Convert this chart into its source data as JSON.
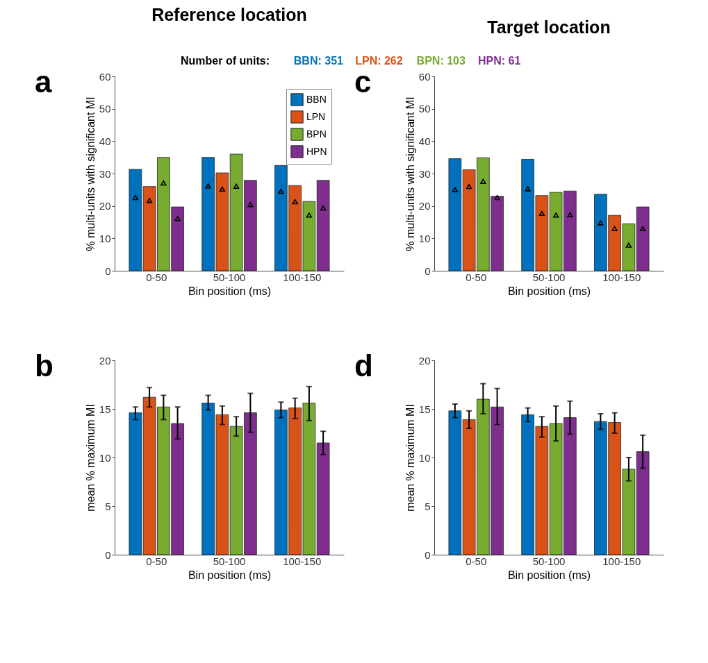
{
  "chart_data": [
    {
      "type": "bar",
      "title": "Reference location",
      "xlabel": "Bin position (ms)",
      "ylabel": "% multi-units with significant MI",
      "categories": [
        "0-50",
        "50-100",
        "100-150"
      ],
      "ylim": [
        0,
        60
      ],
      "yticks": [
        0,
        10,
        20,
        30,
        40,
        50,
        60
      ],
      "grid": false,
      "legend": "top right",
      "annotations": [
        "a",
        "Number of units:",
        "BBN: 351",
        "LPN: 262",
        "BPN: 103",
        "HPN: 61"
      ],
      "series": [
        {
          "name": "BBN",
          "color": "#0072bd",
          "values": [
            31.3,
            35.0,
            32.5
          ]
        },
        {
          "name": "LPN",
          "color": "#d95319",
          "values": [
            26.0,
            30.2,
            26.3
          ]
        },
        {
          "name": "BPN",
          "color": "#77ac30",
          "values": [
            35.0,
            36.0,
            21.4
          ]
        },
        {
          "name": "HPN",
          "color": "#7e2f8e",
          "values": [
            19.7,
            27.9,
            27.9
          ]
        },
        {
          "type": "scatter",
          "marker": "triangle",
          "color": "#000000",
          "x": [
            "0-50",
            "50-100",
            "100-150"
          ],
          "values": [
            22.6,
            26.2,
            24.5
          ]
        },
        {
          "type": "scatter",
          "marker": "triangle",
          "color": "#000000",
          "x": [
            "0-50",
            "50-100",
            "100-150"
          ],
          "values": [
            21.7,
            25.2,
            21.3
          ]
        },
        {
          "type": "scatter",
          "marker": "triangle",
          "color": "#000000",
          "x": [
            "0-50",
            "50-100",
            "100-150"
          ],
          "values": [
            27.1,
            26.1,
            17.2
          ]
        },
        {
          "type": "scatter",
          "marker": "triangle",
          "color": "#000000",
          "x": [
            "0-50",
            "50-100",
            "100-150"
          ],
          "values": [
            16.1,
            20.4,
            19.4
          ]
        }
      ]
    },
    {
      "type": "bar",
      "title": "Target location",
      "xlabel": "Bin position (ms)",
      "ylabel": "% multi-units with significant MI",
      "categories": [
        "0-50",
        "50-100",
        "100-150"
      ],
      "ylim": [
        0,
        60
      ],
      "yticks": [
        0,
        10,
        20,
        30,
        40,
        50,
        60
      ],
      "grid": false,
      "annotations": [
        "c"
      ],
      "series": [
        {
          "color": "#0072bd",
          "values": [
            34.6,
            34.4,
            23.6
          ]
        },
        {
          "color": "#d95319",
          "values": [
            31.2,
            23.2,
            17.1
          ]
        },
        {
          "color": "#77ac30",
          "values": [
            34.9,
            24.2,
            14.5
          ]
        },
        {
          "color": "#7e2f8e",
          "values": [
            23.0,
            24.6,
            19.7
          ]
        },
        {
          "type": "scatter",
          "marker": "triangle",
          "color": "#000000",
          "x": [
            "0-50",
            "50-100",
            "100-150"
          ],
          "values": [
            25.0,
            25.3,
            14.8
          ]
        },
        {
          "type": "scatter",
          "marker": "triangle",
          "color": "#000000",
          "x": [
            "0-50",
            "50-100",
            "100-150"
          ],
          "values": [
            26.0,
            17.7,
            13.0
          ]
        },
        {
          "type": "scatter",
          "marker": "triangle",
          "color": "#000000",
          "x": [
            "0-50",
            "50-100",
            "100-150"
          ],
          "values": [
            27.6,
            17.2,
            7.9
          ]
        },
        {
          "type": "scatter",
          "marker": "triangle",
          "color": "#000000",
          "x": [
            "0-50",
            "50-100",
            "100-150"
          ],
          "values": [
            22.6,
            17.3,
            13.0
          ]
        }
      ]
    },
    {
      "type": "bar",
      "xlabel": "Bin position (ms)",
      "ylabel": "mean % maximum MI",
      "categories": [
        "0-50",
        "50-100",
        "100-150"
      ],
      "ylim": [
        0,
        20
      ],
      "yticks": [
        0,
        5,
        10,
        15,
        20
      ],
      "grid": false,
      "annotations": [
        "b"
      ],
      "series": [
        {
          "color": "#0072bd",
          "values": [
            14.6,
            15.6,
            14.9
          ],
          "errors": [
            [
              13.9,
              15.2
            ],
            [
              14.9,
              16.4
            ],
            [
              14.1,
              15.7
            ]
          ]
        },
        {
          "color": "#d95319",
          "values": [
            16.2,
            14.4,
            15.1
          ],
          "errors": [
            [
              15.2,
              17.2
            ],
            [
              13.4,
              15.3
            ],
            [
              14.0,
              16.1
            ]
          ]
        },
        {
          "color": "#77ac30",
          "values": [
            15.2,
            13.2,
            15.6
          ],
          "errors": [
            [
              13.9,
              16.4
            ],
            [
              12.2,
              14.2
            ],
            [
              13.8,
              17.3
            ]
          ]
        },
        {
          "color": "#7e2f8e",
          "values": [
            13.5,
            14.6,
            11.5
          ],
          "errors": [
            [
              11.9,
              15.2
            ],
            [
              12.6,
              16.6
            ],
            [
              10.3,
              12.7
            ]
          ]
        }
      ]
    },
    {
      "type": "bar",
      "xlabel": "Bin position (ms)",
      "ylabel": "mean % maximum MI",
      "categories": [
        "0-50",
        "50-100",
        "100-150"
      ],
      "ylim": [
        0,
        20
      ],
      "yticks": [
        0,
        5,
        10,
        15,
        20
      ],
      "grid": false,
      "annotations": [
        "d"
      ],
      "series": [
        {
          "color": "#0072bd",
          "values": [
            14.8,
            14.4,
            13.7
          ],
          "errors": [
            [
              14.1,
              15.5
            ],
            [
              13.7,
              15.1
            ],
            [
              12.9,
              14.5
            ]
          ]
        },
        {
          "color": "#d95319",
          "values": [
            13.9,
            13.2,
            13.6
          ],
          "errors": [
            [
              13.0,
              14.8
            ],
            [
              12.1,
              14.2
            ],
            [
              12.5,
              14.6
            ]
          ]
        },
        {
          "color": "#77ac30",
          "values": [
            16.0,
            13.5,
            8.8
          ],
          "errors": [
            [
              14.5,
              17.6
            ],
            [
              11.7,
              15.3
            ],
            [
              7.6,
              10.0
            ]
          ]
        },
        {
          "color": "#7e2f8e",
          "values": [
            15.2,
            14.1,
            10.6
          ],
          "errors": [
            [
              13.4,
              17.1
            ],
            [
              12.4,
              15.8
            ],
            [
              8.9,
              12.3
            ]
          ]
        }
      ]
    }
  ]
}
